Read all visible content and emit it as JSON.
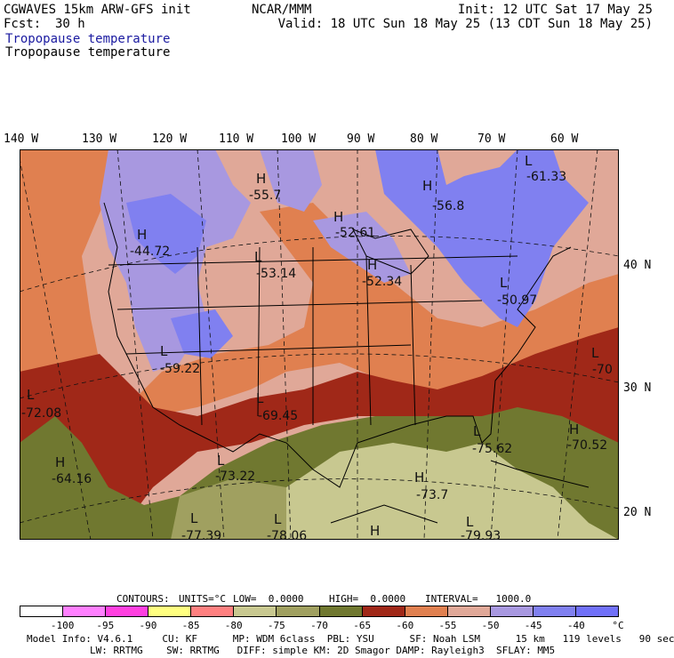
{
  "header": {
    "model": "CGWAVES 15km ARW-GFS init",
    "fcst_label": "Fcst:",
    "fcst_value": "30 h",
    "org": "NCAR/MMM",
    "init": "Init: 12 UTC Sat 17 May 25",
    "valid": "Valid: 18 UTC Sun 18 May 25 (13 CDT Sun 18 May 25)",
    "field_title_blue": "Tropopause temperature",
    "field_title_black": "Tropopause temperature"
  },
  "axes": {
    "lon_labels": [
      "140 W",
      "130 W",
      "120 W",
      "110 W",
      "100 W",
      "90 W",
      "80 W",
      "70 W",
      "60 W"
    ],
    "lat_labels": [
      "40 N",
      "30 N",
      "20 N"
    ]
  },
  "map_labels": [
    {
      "type": "H",
      "value": "-55.7"
    },
    {
      "type": "H",
      "value": "-52.61"
    },
    {
      "type": "H",
      "value": "-44.72"
    },
    {
      "type": "L",
      "value": "-53.14"
    },
    {
      "type": "H",
      "value": "-52.34"
    },
    {
      "type": "H",
      "value": "-56.8"
    },
    {
      "type": "L",
      "value": "-61.33"
    },
    {
      "type": "L",
      "value": "-50.97"
    },
    {
      "type": "L",
      "value": "-59.22"
    },
    {
      "type": "L",
      "value": "-69.45"
    },
    {
      "type": "L",
      "value": "-72.08"
    },
    {
      "type": "L",
      "value": "-70"
    },
    {
      "type": "H",
      "value": "-70.52"
    },
    {
      "type": "H",
      "value": "-64.16"
    },
    {
      "type": "L",
      "value": "-73.22"
    },
    {
      "type": "L",
      "value": "-75.62"
    },
    {
      "type": "H",
      "value": "-73.7"
    },
    {
      "type": "L",
      "value": "-77.39"
    },
    {
      "type": "L",
      "value": "-78.06"
    },
    {
      "type": "H",
      "value": ""
    },
    {
      "type": "L",
      "value": "-79.93"
    }
  ],
  "contour_info": {
    "contours": "CONTOURS:",
    "units": "UNITS=°C",
    "low": "LOW=  0.0000",
    "high": "HIGH=  0.0000",
    "interval": "INTERVAL=   1000.0"
  },
  "colorbar": {
    "colors": [
      "#ffffff",
      "#ff80ff",
      "#ff40e0",
      "#ffff80",
      "#ff8080",
      "#c8c890",
      "#a0a060",
      "#707830",
      "#a02818",
      "#e08050",
      "#e0a898",
      "#a898e0",
      "#8080f0",
      "#7070f8"
    ],
    "labels": [
      "-100",
      "-95",
      "-90",
      "-85",
      "-80",
      "-75",
      "-70",
      "-65",
      "-60",
      "-55",
      "-50",
      "-45",
      "-40",
      "°C"
    ]
  },
  "footer": {
    "line1": "Model Info: V4.6.1     CU: KF      MP: WDM 6class  PBL: YSU      SF: Noah LSM      15 km   119 levels   90 sec",
    "line2": "LW: RRTMG    SW: RRTMG   DIFF: simple KM: 2D Smagor DAMP: Rayleigh3  SFLAY: MM5"
  }
}
